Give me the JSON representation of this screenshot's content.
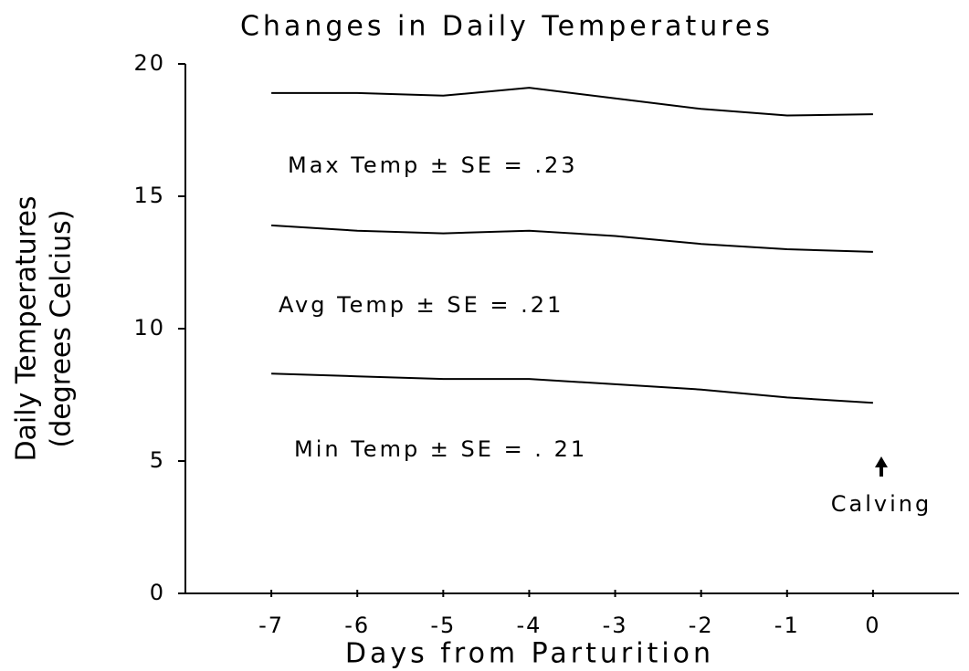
{
  "chart_data": {
    "type": "line",
    "title": "Changes in Daily Temperatures",
    "xlabel": "Days from Parturition",
    "ylabel": [
      "Daily Temperatures",
      "(degrees Celcius)"
    ],
    "x": [
      -7,
      -6,
      -5,
      -4,
      -3,
      -2,
      -1,
      0
    ],
    "series": [
      {
        "color": "#000000",
        "values": [
          18.9,
          18.9,
          18.8,
          19.1,
          18.7,
          18.3,
          18.05,
          18.1
        ]
      },
      {
        "color": "#000000",
        "values": [
          13.9,
          13.7,
          13.6,
          13.7,
          13.5,
          13.2,
          13.0,
          12.9
        ]
      },
      {
        "color": "#000000",
        "values": [
          8.3,
          8.2,
          8.1,
          8.1,
          7.9,
          7.7,
          7.4,
          7.2
        ]
      }
    ],
    "xlim": [
      -8,
      1
    ],
    "xticks": [
      -7,
      -6,
      -5,
      -4,
      -3,
      -2,
      -1,
      0
    ],
    "ylim": [
      0,
      20
    ],
    "yticks": [
      0,
      5,
      10,
      15,
      20
    ],
    "annotations": [
      "Max Temp ± SE = .23",
      "Avg Temp ± SE = .21",
      "Min Temp ± SE = . 21",
      "Calving"
    ]
  }
}
